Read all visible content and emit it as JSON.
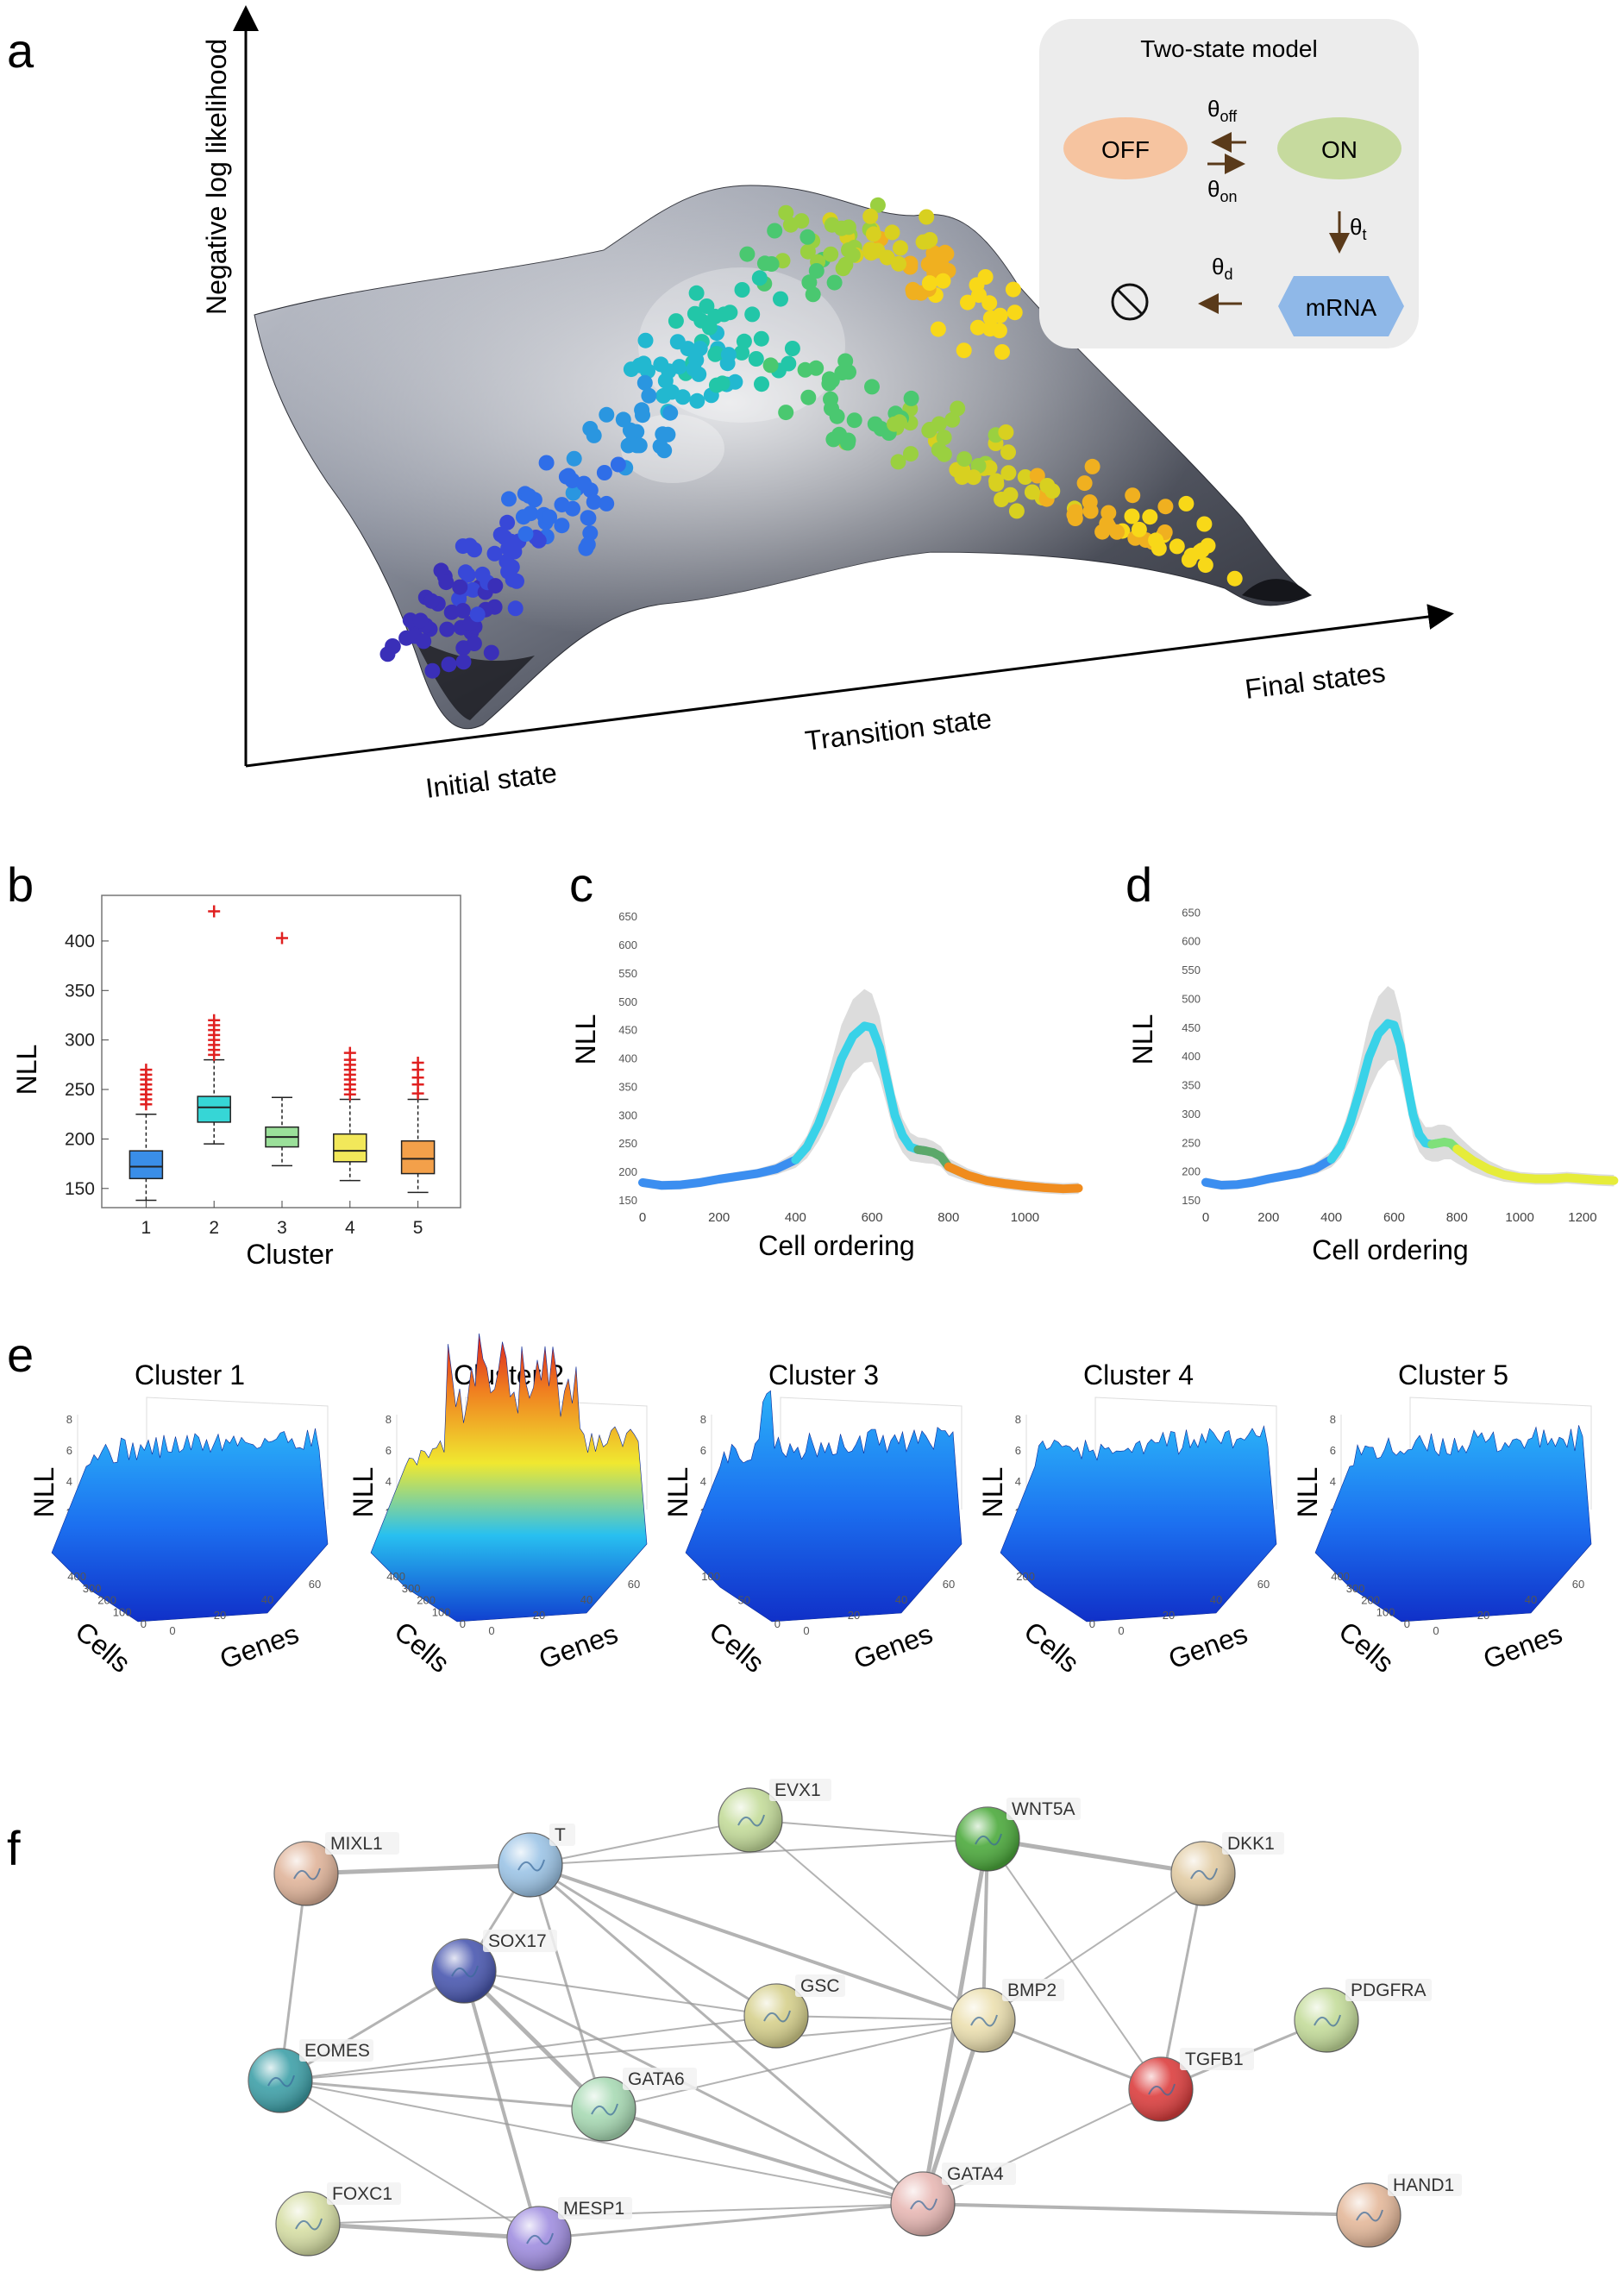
{
  "panel_letters": {
    "a": "a",
    "b": "b",
    "c": "c",
    "d": "d",
    "e": "e",
    "f": "f"
  },
  "panel_a": {
    "y_axis_label": "Negative log likelihood",
    "x_labels": {
      "initial": "Initial state",
      "transition": "Transition state",
      "final": "Final states"
    },
    "model_box": {
      "title": "Two-state model",
      "off_label": "OFF",
      "on_label": "ON",
      "mrna_label": "mRNA",
      "theta": "θ",
      "sub_off": "off",
      "sub_on": "on",
      "sub_t": "t",
      "sub_d": "d",
      "colors": {
        "off": "#f6c4a0",
        "on": "#c6da9e",
        "mrna": "#8fb8e8",
        "box": "#ececec"
      }
    }
  },
  "chart_data": [
    {
      "id": "b",
      "type": "box",
      "xlabel": "Cluster",
      "ylabel": "NLL",
      "categories": [
        "1",
        "2",
        "3",
        "4",
        "5"
      ],
      "ylim": [
        135,
        440
      ],
      "yticks": [
        150,
        200,
        250,
        300,
        350,
        400
      ],
      "colors": [
        "#3a8ee8",
        "#36d6d6",
        "#9be09a",
        "#f2e85a",
        "#f3a04a"
      ],
      "boxes": [
        {
          "min": 138,
          "q1": 160,
          "median": 172,
          "q3": 188,
          "max": 225,
          "outliers": [
            235,
            240,
            245,
            250,
            255,
            260,
            265,
            270
          ]
        },
        {
          "min": 195,
          "q1": 217,
          "median": 232,
          "q3": 243,
          "max": 280,
          "outliers": [
            285,
            290,
            295,
            300,
            305,
            310,
            315,
            320,
            430
          ]
        },
        {
          "min": 173,
          "q1": 192,
          "median": 202,
          "q3": 212,
          "max": 242,
          "outliers": [
            403
          ]
        },
        {
          "min": 158,
          "q1": 177,
          "median": 188,
          "q3": 205,
          "max": 240,
          "outliers": [
            245,
            250,
            255,
            260,
            265,
            270,
            275,
            280,
            287
          ]
        },
        {
          "min": 146,
          "q1": 165,
          "median": 180,
          "q3": 198,
          "max": 240,
          "outliers": [
            246,
            255,
            262,
            270,
            277
          ]
        }
      ]
    },
    {
      "id": "c",
      "type": "line",
      "xlabel": "Cell ordering",
      "ylabel": "NLL",
      "xlim": [
        0,
        1150
      ],
      "ylim": [
        150,
        670
      ],
      "xticks": [
        0,
        200,
        400,
        600,
        800,
        1000
      ],
      "yticks": [
        150,
        200,
        250,
        300,
        350,
        400,
        450,
        500,
        550,
        600,
        650
      ],
      "ytick_labels": [
        "150",
        "200",
        "250",
        "300",
        "350",
        "400",
        "450",
        "500",
        "550",
        "600",
        "650"
      ],
      "x": [
        0,
        50,
        100,
        150,
        200,
        250,
        300,
        350,
        400,
        430,
        460,
        490,
        520,
        550,
        580,
        600,
        620,
        640,
        660,
        680,
        700,
        720,
        740,
        760,
        780,
        800,
        850,
        900,
        950,
        1000,
        1050,
        1100,
        1140
      ],
      "y": [
        182,
        177,
        178,
        182,
        188,
        193,
        198,
        206,
        222,
        245,
        285,
        340,
        400,
        440,
        458,
        455,
        420,
        360,
        300,
        265,
        245,
        240,
        238,
        235,
        228,
        210,
        195,
        185,
        180,
        176,
        173,
        171,
        172
      ],
      "band_width": [
        8,
        8,
        8,
        8,
        8,
        8,
        8,
        10,
        14,
        20,
        30,
        45,
        60,
        65,
        65,
        60,
        55,
        45,
        38,
        30,
        25,
        22,
        22,
        20,
        18,
        15,
        12,
        10,
        10,
        10,
        10,
        10,
        10
      ],
      "segments": [
        {
          "from": 0,
          "to": 400,
          "color": "#3b8ef0"
        },
        {
          "from": 400,
          "to": 720,
          "color": "#39d2e8"
        },
        {
          "from": 720,
          "to": 800,
          "color": "#5ba86a"
        },
        {
          "from": 800,
          "to": 1140,
          "color": "#f08c1e"
        }
      ]
    },
    {
      "id": "d",
      "type": "line",
      "xlabel": "Cell ordering",
      "ylabel": "NLL",
      "xlim": [
        0,
        1310
      ],
      "ylim": [
        150,
        670
      ],
      "xticks": [
        0,
        200,
        400,
        600,
        800,
        1000,
        1200
      ],
      "yticks": [
        150,
        200,
        250,
        300,
        350,
        400,
        450,
        500,
        550,
        600,
        650
      ],
      "ytick_labels": [
        "150",
        "200",
        "250",
        "300",
        "350",
        "400",
        "450",
        "500",
        "550",
        "600",
        "650"
      ],
      "x": [
        0,
        50,
        100,
        150,
        200,
        250,
        300,
        350,
        400,
        430,
        460,
        490,
        520,
        550,
        580,
        600,
        620,
        640,
        660,
        680,
        700,
        720,
        740,
        760,
        780,
        800,
        850,
        900,
        950,
        1000,
        1050,
        1100,
        1150,
        1200,
        1250,
        1300
      ],
      "y": [
        182,
        177,
        178,
        182,
        188,
        193,
        198,
        206,
        222,
        245,
        285,
        340,
        400,
        440,
        458,
        455,
        420,
        360,
        300,
        265,
        250,
        248,
        250,
        252,
        250,
        240,
        220,
        205,
        195,
        190,
        188,
        188,
        190,
        188,
        186,
        185
      ],
      "band_width": [
        8,
        8,
        8,
        8,
        8,
        8,
        8,
        10,
        14,
        20,
        30,
        45,
        60,
        65,
        65,
        60,
        55,
        45,
        38,
        30,
        28,
        30,
        32,
        30,
        28,
        25,
        20,
        15,
        12,
        10,
        10,
        10,
        10,
        10,
        10,
        10
      ],
      "segments": [
        {
          "from": 0,
          "to": 400,
          "color": "#3b8ef0"
        },
        {
          "from": 400,
          "to": 720,
          "color": "#39d2e8"
        },
        {
          "from": 720,
          "to": 800,
          "color": "#7fe07a"
        },
        {
          "from": 800,
          "to": 1310,
          "color": "#e6ec3a"
        }
      ]
    }
  ],
  "panel_e": {
    "z_label": "NLL",
    "cells_label": "Cells",
    "genes_label": "Genes",
    "z_ticks": [
      "0",
      "2",
      "4",
      "6",
      "8"
    ],
    "gene_ticks": [
      "0",
      "20",
      "40",
      "60"
    ],
    "clusters": [
      {
        "title": "Cluster 1",
        "cell_ticks": [
          "0",
          "100",
          "200",
          "300",
          "400"
        ],
        "show_genes": true
      },
      {
        "title": "Cluster 2",
        "cell_ticks": [
          "0",
          "100",
          "200",
          "300",
          "400"
        ],
        "show_genes": true
      },
      {
        "title": "Cluster 3",
        "cell_ticks": [
          "0",
          "50",
          "100"
        ],
        "show_genes": true
      },
      {
        "title": "Cluster 4",
        "cell_ticks": [
          "0",
          "200"
        ],
        "show_genes": true
      },
      {
        "title": "Cluster 5",
        "cell_ticks": [
          "0",
          "100",
          "200",
          "300",
          "400"
        ],
        "show_genes": true
      }
    ]
  },
  "panel_f": {
    "nodes": [
      {
        "label": "MIXL1",
        "color": "#e0b49a"
      },
      {
        "label": "T",
        "color": "#9cc4e6"
      },
      {
        "label": "EVX1",
        "color": "#c4dc9a"
      },
      {
        "label": "WNT5A",
        "color": "#4caa3c"
      },
      {
        "label": "DKK1",
        "color": "#e2cca4"
      },
      {
        "label": "SOX17",
        "color": "#4a58b0"
      },
      {
        "label": "GSC",
        "color": "#d6d08c"
      },
      {
        "label": "BMP2",
        "color": "#ece0b0"
      },
      {
        "label": "PDGFRA",
        "color": "#c4dc9a"
      },
      {
        "label": "EOMES",
        "color": "#3ea0a8"
      },
      {
        "label": "GATA6",
        "color": "#a8dab4"
      },
      {
        "label": "TGFB1",
        "color": "#dc3e3e"
      },
      {
        "label": "FOXC1",
        "color": "#d6dea4"
      },
      {
        "label": "MESP1",
        "color": "#a08ee0"
      },
      {
        "label": "GATA4",
        "color": "#e8b8b4"
      },
      {
        "label": "HAND1",
        "color": "#e4b89a"
      }
    ]
  }
}
